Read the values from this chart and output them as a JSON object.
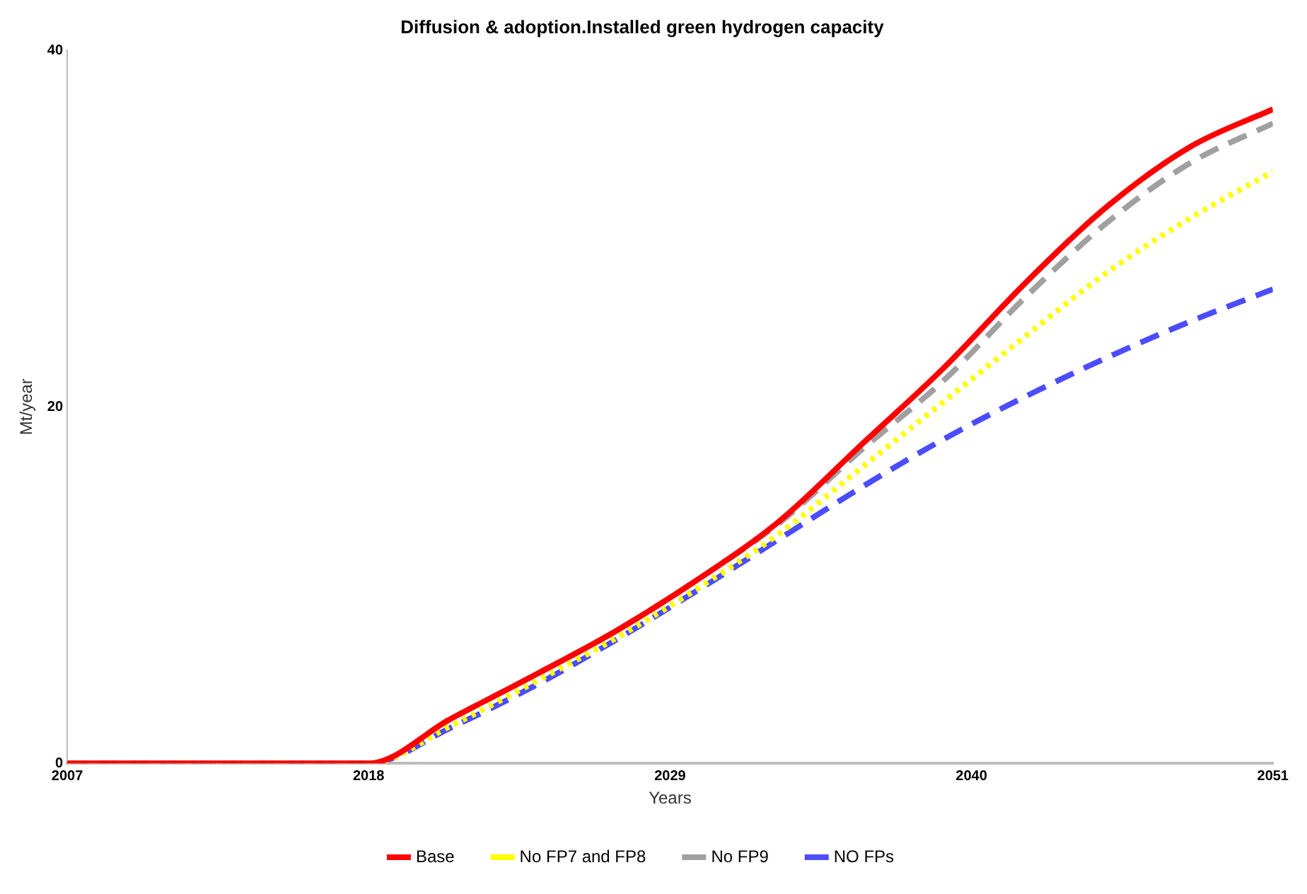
{
  "chart_data": {
    "type": "line",
    "title": "Diffusion & adoption.Installed green hydrogen capacity",
    "xlabel": "Years",
    "ylabel": "Mt/year",
    "x": [
      2007,
      2018,
      2021,
      2024,
      2027,
      2030,
      2033,
      2036,
      2039,
      2042,
      2045,
      2048,
      2051
    ],
    "series": [
      {
        "name": "Base",
        "color": "#ff0000",
        "line_style": "solid",
        "values": [
          0,
          0,
          2.5,
          4.9,
          7.4,
          10.3,
          13.6,
          17.9,
          22.2,
          27,
          31.3,
          34.6,
          36.7
        ]
      },
      {
        "name": "No FP7 and FP8",
        "color": "#ffff00",
        "line_style": "dotted",
        "values": [
          0,
          0,
          2.1,
          4.5,
          7.0,
          9.8,
          12.9,
          16.6,
          20.3,
          24.0,
          27.6,
          30.6,
          33.2
        ]
      },
      {
        "name": "No FP9",
        "color": "#a0a0a0",
        "line_style": "dashed",
        "values": [
          0,
          0,
          2.5,
          4.9,
          7.4,
          10.3,
          13.5,
          17.6,
          21.5,
          26.2,
          30.4,
          33.7,
          35.9
        ]
      },
      {
        "name": "NO FPs",
        "color": "#4c4cff",
        "line_style": "dashed",
        "values": [
          0,
          0,
          2.0,
          4.3,
          6.9,
          9.7,
          12.6,
          15.5,
          18.2,
          20.6,
          22.8,
          24.8,
          26.6
        ]
      }
    ],
    "xlim": [
      2007,
      2051
    ],
    "xticks": [
      2007,
      2018,
      2029,
      2040,
      2051
    ],
    "ylim": [
      0,
      40
    ],
    "yticks": [
      0,
      20,
      40
    ],
    "grid": false,
    "legend": "bottom",
    "marker": "none"
  }
}
